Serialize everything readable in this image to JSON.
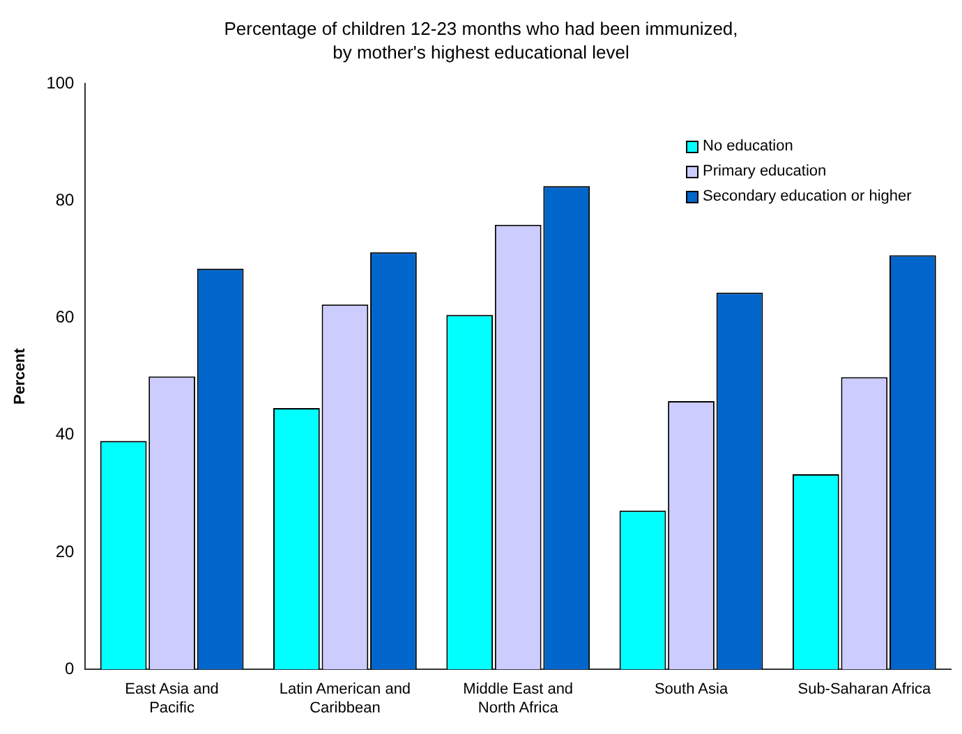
{
  "chart_data": {
    "type": "bar",
    "title": "Percentage of children 12-23 months who had been immunized, by mother's highest educational level",
    "ylabel": "Percent",
    "categories": [
      "East Asia and Pacific",
      "Latin American and Caribbean",
      "Middle East and North Africa",
      "South Asia",
      "Sub-Saharan Africa"
    ],
    "series": [
      {
        "name": "No education",
        "color": "#00ffff",
        "values": [
          39,
          44.6,
          60.5,
          27.1,
          33.3
        ]
      },
      {
        "name": "Primary education",
        "color": "#ccccff",
        "values": [
          50,
          62.3,
          75.9,
          45.8,
          49.9
        ]
      },
      {
        "name": "Secondary education or higher",
        "color": "#0066cc",
        "values": [
          68.4,
          71.2,
          82.5,
          64.3,
          70.7
        ]
      }
    ],
    "ylim": [
      0,
      100
    ],
    "yticks": [
      0,
      20,
      40,
      60,
      80,
      100
    ],
    "grid": false,
    "legend": "top right"
  }
}
